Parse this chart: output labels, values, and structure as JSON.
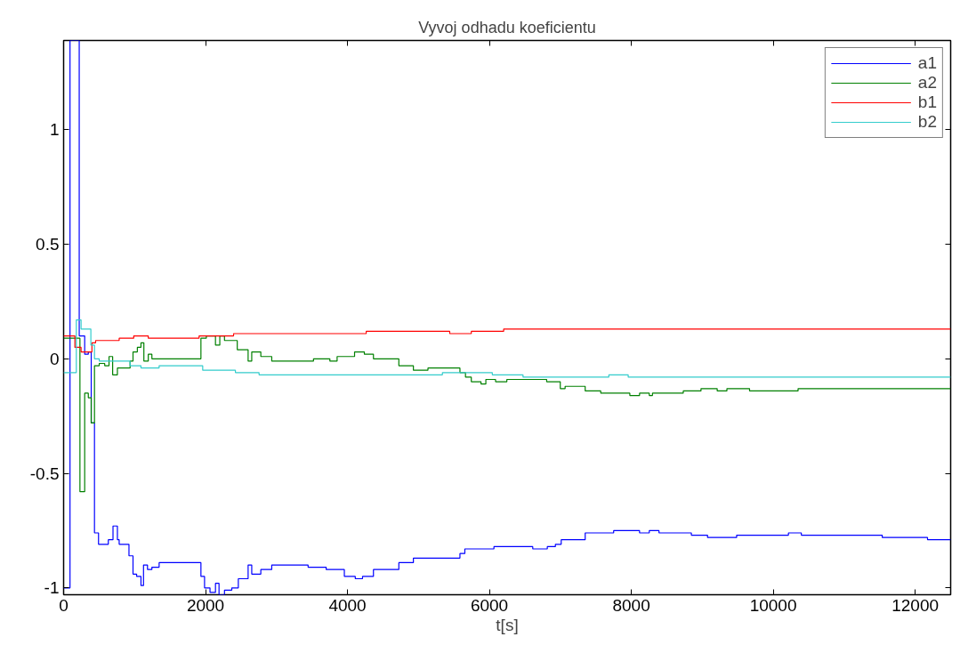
{
  "chart_data": {
    "type": "step",
    "title": "Vyvoj odhadu koeficientu",
    "xlabel": "t[s]",
    "xlim": [
      0,
      12500
    ],
    "ylim": [
      -1.03,
      1.39
    ],
    "xticks": [
      0,
      2000,
      4000,
      6000,
      8000,
      10000,
      12000
    ],
    "yticks": [
      -1,
      -0.5,
      0,
      0.5,
      1
    ],
    "grid": false,
    "legend": "top right",
    "marker": "none",
    "line_style": "solid",
    "series": [
      {
        "name": "a1",
        "color": "#0000ff",
        "x": [
          0,
          90,
          220,
          297,
          348,
          389,
          435,
          492,
          630,
          696,
          758,
          783,
          921,
          978,
          1029,
          1090,
          1126,
          1182,
          1244,
          1346,
          1935,
          1986,
          2063,
          2140,
          2190,
          2267,
          2370,
          2462,
          2600,
          2651,
          2779,
          2933,
          3445,
          3700,
          3956,
          4110,
          4212,
          4366,
          4724,
          4929,
          5380,
          5585,
          5654,
          6064,
          6246,
          6611,
          6816,
          6930,
          7012,
          7181,
          7350,
          7751,
          8116,
          8253,
          8390,
          8846,
          9074,
          9484,
          9940,
          10214,
          10396,
          11536,
          12174,
          12500
        ],
        "values": [
          -1.0,
          1.39,
          0.1,
          0.02,
          0.03,
          -0.28,
          -0.76,
          -0.81,
          -0.79,
          -0.73,
          -0.79,
          -0.81,
          -0.86,
          -0.94,
          -0.95,
          -0.99,
          -0.9,
          -0.92,
          -0.91,
          -0.89,
          -0.95,
          -1.0,
          -1.02,
          -0.98,
          -1.03,
          -1.01,
          -1.0,
          -0.96,
          -0.9,
          -0.94,
          -0.92,
          -0.9,
          -0.91,
          -0.92,
          -0.95,
          -0.96,
          -0.95,
          -0.92,
          -0.89,
          -0.87,
          -0.87,
          -0.85,
          -0.83,
          -0.82,
          -0.82,
          -0.83,
          -0.82,
          -0.81,
          -0.79,
          -0.79,
          -0.76,
          -0.75,
          -0.76,
          -0.75,
          -0.76,
          -0.77,
          -0.78,
          -0.77,
          -0.77,
          -0.76,
          -0.77,
          -0.78,
          -0.79,
          -0.79
        ]
      },
      {
        "name": "a2",
        "color": "#008000",
        "x": [
          0,
          230,
          297,
          348,
          389,
          435,
          502,
          579,
          640,
          691,
          758,
          937,
          978,
          1039,
          1090,
          1131,
          1193,
          1244,
          1935,
          2011,
          2140,
          2201,
          2267,
          2447,
          2600,
          2651,
          2779,
          2933,
          3521,
          3752,
          3854,
          3956,
          4100,
          4238,
          4366,
          4724,
          4929,
          5134,
          5380,
          5585,
          5663,
          5745,
          5882,
          5950,
          6087,
          6246,
          6807,
          6999,
          7067,
          7181,
          7350,
          7569,
          7979,
          8116,
          8253,
          8298,
          8732,
          8982,
          9210,
          9347,
          9666,
          10191,
          10350,
          11924,
          12500
        ],
        "values": [
          0.09,
          -0.58,
          -0.15,
          -0.17,
          -0.28,
          -0.03,
          -0.02,
          -0.03,
          0.01,
          -0.07,
          -0.04,
          -0.01,
          0.03,
          0.05,
          0.07,
          -0.01,
          0.02,
          0.0,
          0.09,
          0.1,
          0.06,
          0.1,
          0.08,
          0.04,
          -0.01,
          0.03,
          0.01,
          -0.01,
          0.0,
          -0.01,
          0.01,
          0.01,
          0.03,
          0.02,
          0.0,
          -0.03,
          -0.05,
          -0.04,
          -0.04,
          -0.06,
          -0.08,
          -0.1,
          -0.11,
          -0.09,
          -0.1,
          -0.09,
          -0.1,
          -0.13,
          -0.12,
          -0.12,
          -0.14,
          -0.15,
          -0.16,
          -0.15,
          -0.16,
          -0.15,
          -0.14,
          -0.13,
          -0.14,
          -0.13,
          -0.14,
          -0.14,
          -0.13,
          -0.13,
          -0.13
        ]
      },
      {
        "name": "b1",
        "color": "#ff0000",
        "x": [
          0,
          159,
          246,
          399,
          451,
          783,
          988,
          1193,
          1909,
          2395,
          2575,
          4264,
          5441,
          5585,
          5745,
          6201,
          6794,
          12500
        ],
        "values": [
          0.1,
          0.05,
          0.03,
          0.07,
          0.08,
          0.09,
          0.1,
          0.09,
          0.1,
          0.11,
          0.11,
          0.12,
          0.11,
          0.11,
          0.12,
          0.13,
          0.13,
          0.13
        ]
      },
      {
        "name": "b2",
        "color": "#33cccc",
        "x": [
          0,
          179,
          246,
          384,
          435,
          502,
          758,
          937,
          1090,
          1346,
          1960,
          2216,
          2421,
          2754,
          4059,
          4417,
          4826,
          5338,
          5562,
          6041,
          6474,
          6953,
          7067,
          7683,
          7956,
          12500
        ],
        "values": [
          -0.06,
          0.17,
          0.13,
          0.06,
          0.0,
          -0.01,
          -0.01,
          -0.03,
          -0.04,
          -0.03,
          -0.05,
          -0.05,
          -0.06,
          -0.07,
          -0.07,
          -0.07,
          -0.07,
          -0.06,
          -0.06,
          -0.07,
          -0.08,
          -0.08,
          -0.08,
          -0.07,
          -0.08,
          -0.08
        ]
      }
    ]
  }
}
